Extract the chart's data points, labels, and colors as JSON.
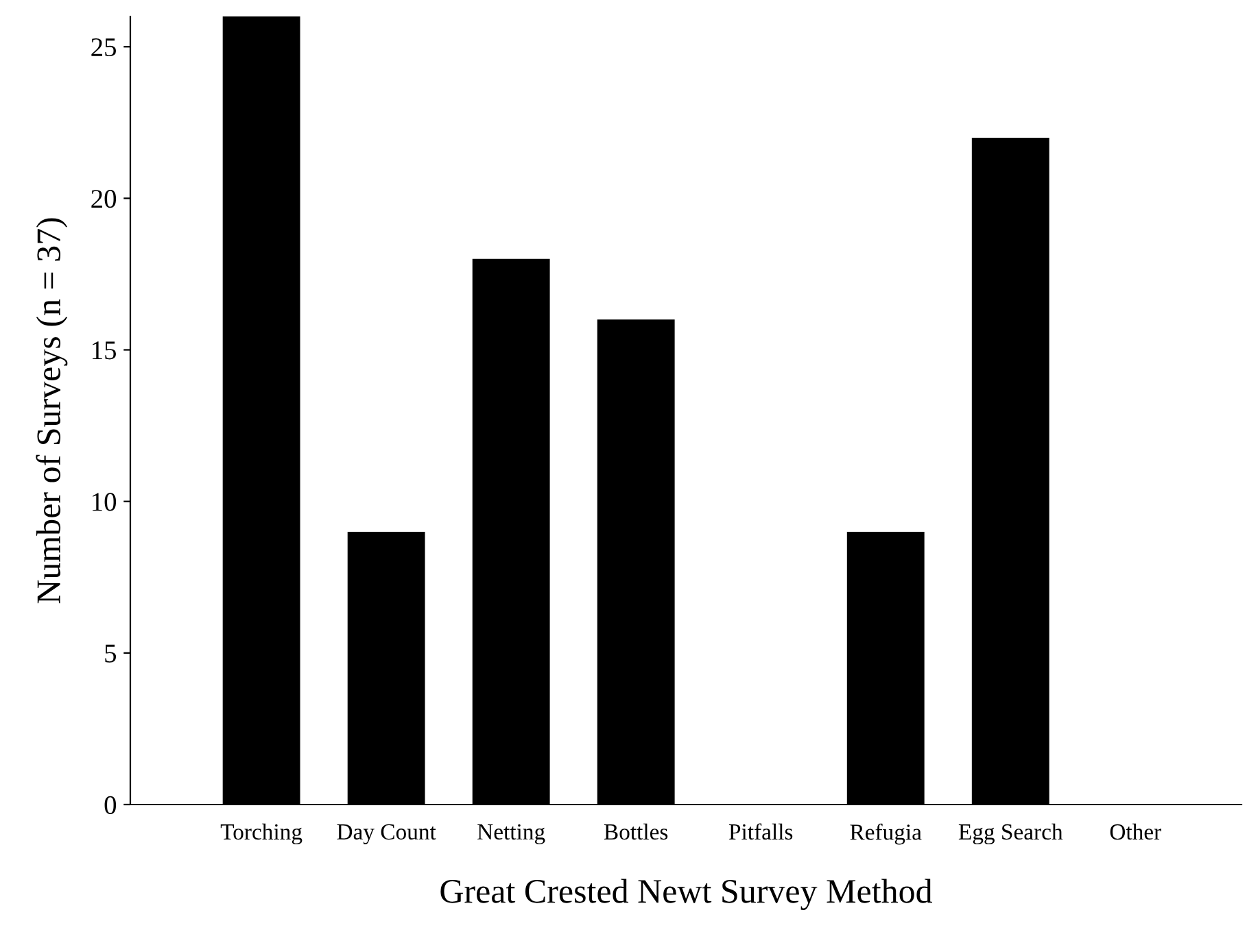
{
  "chart_data": {
    "type": "bar",
    "xlabel": "Great Crested Newt Survey Method",
    "ylabel": "Number of Surveys (n = 37)",
    "categories": [
      "Torching",
      "Day Count",
      "Netting",
      "Bottles",
      "Pitfalls",
      "Refugia",
      "Egg Search",
      "Other"
    ],
    "values": [
      26,
      9,
      18,
      16,
      0,
      9,
      22,
      0
    ],
    "color": "#000000",
    "ylim": [
      0,
      26
    ],
    "yticks": [
      0,
      5,
      10,
      15,
      20,
      25
    ],
    "grid": false,
    "legend": false
  }
}
